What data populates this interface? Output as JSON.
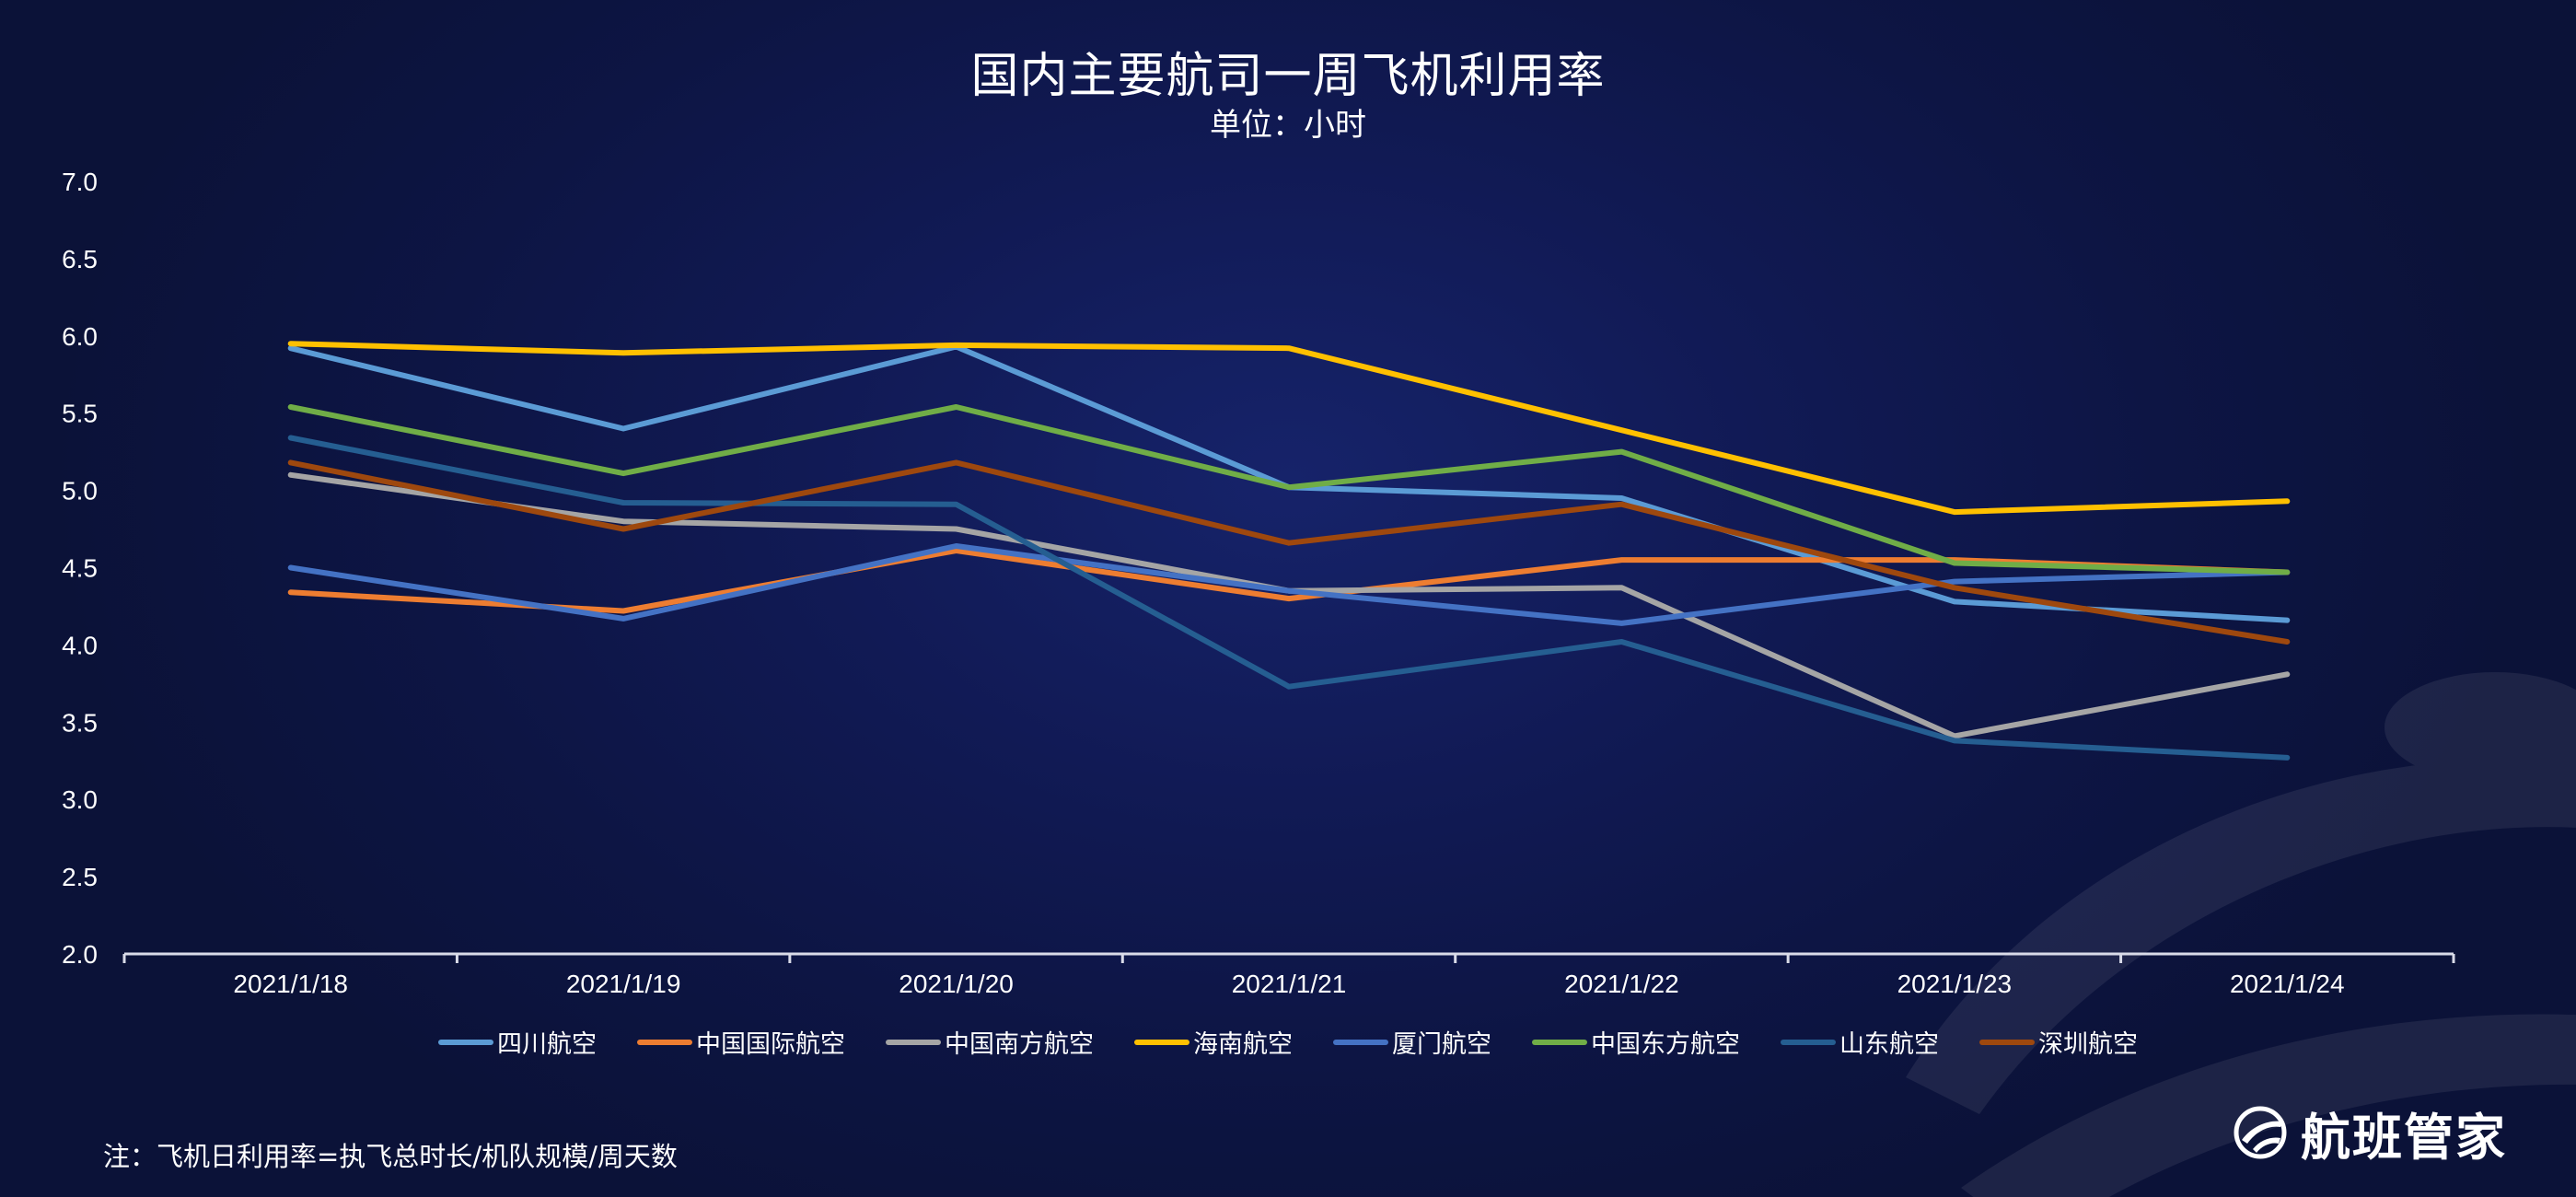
{
  "title": "国内主要航司一周飞机利用率",
  "subtitle": "单位：小时",
  "note": "注：飞机日利用率=执飞总时长/机队规模/周天数",
  "brand": {
    "name": "航班管家",
    "logo_icon": "airplane-globe-icon"
  },
  "chart_data": {
    "type": "line",
    "title": "国内主要航司一周飞机利用率",
    "subtitle": "单位：小时",
    "xlabel": "",
    "ylabel": "",
    "categories": [
      "2021/1/18",
      "2021/1/19",
      "2021/1/20",
      "2021/1/21",
      "2021/1/22",
      "2021/1/23",
      "2021/1/24"
    ],
    "ylim": [
      2.0,
      7.0
    ],
    "yticks": [
      "2.0",
      "2.5",
      "3.0",
      "3.5",
      "4.0",
      "4.5",
      "5.0",
      "5.5",
      "6.0",
      "6.5",
      "7.0"
    ],
    "grid": false,
    "legend_position": "bottom",
    "series": [
      {
        "name": "四川航空",
        "color": "#5b9bd5",
        "values": [
          5.92,
          5.4,
          5.93,
          5.02,
          4.95,
          4.28,
          4.16
        ]
      },
      {
        "name": "中国国际航空",
        "color": "#ed7d31",
        "values": [
          4.34,
          4.22,
          4.61,
          4.3,
          4.55,
          4.55,
          4.47
        ]
      },
      {
        "name": "中国南方航空",
        "color": "#a5a5a5",
        "values": [
          5.1,
          4.8,
          4.75,
          4.35,
          4.37,
          3.41,
          3.81
        ]
      },
      {
        "name": "海南航空",
        "color": "#ffc000",
        "values": [
          5.95,
          5.89,
          5.94,
          5.92,
          5.39,
          4.86,
          4.93
        ]
      },
      {
        "name": "厦门航空",
        "color": "#4472c4",
        "values": [
          4.5,
          4.17,
          4.64,
          4.35,
          4.14,
          4.41,
          4.47
        ]
      },
      {
        "name": "中国东方航空",
        "color": "#70ad47",
        "values": [
          5.54,
          5.11,
          5.54,
          5.02,
          5.25,
          4.53,
          4.47
        ]
      },
      {
        "name": "山东航空",
        "color": "#255e91",
        "values": [
          5.34,
          4.92,
          4.91,
          3.73,
          4.02,
          3.38,
          3.27
        ]
      },
      {
        "name": "深圳航空",
        "color": "#9e480e",
        "values": [
          5.18,
          4.75,
          5.18,
          4.66,
          4.91,
          4.37,
          4.02
        ]
      }
    ]
  }
}
